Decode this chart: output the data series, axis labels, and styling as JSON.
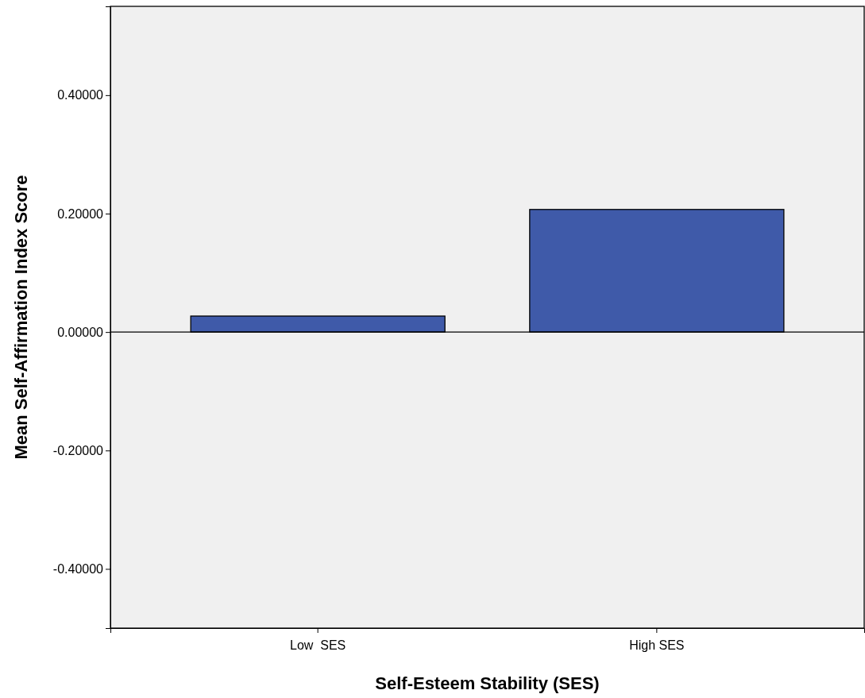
{
  "chart_data": {
    "type": "bar",
    "xlabel": "Self-Esteem Stability (SES)",
    "ylabel": "Mean Self-Affirmation Index Score",
    "categories": [
      "Low  SES",
      "High SES"
    ],
    "values": [
      0.027,
      0.207
    ],
    "color": "#3f5aa9",
    "ylim": [
      -0.5,
      0.55
    ],
    "yticks": [
      {
        "value": -0.4,
        "label": "-0.40000"
      },
      {
        "value": -0.2,
        "label": "-0.20000"
      },
      {
        "value": 0,
        "label": "0.00000"
      },
      {
        "value": 0.2,
        "label": "0.20000"
      },
      {
        "value": 0.4,
        "label": "0.40000"
      }
    ],
    "ref_lines": [
      {
        "axis": "y",
        "value": 0,
        "color": "#000000"
      }
    ]
  }
}
